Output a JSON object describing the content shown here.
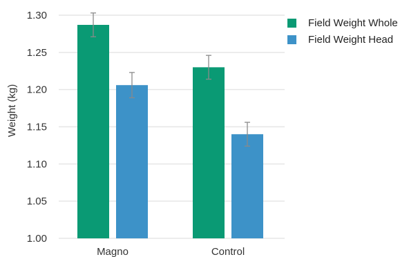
{
  "chart_data": {
    "type": "bar",
    "title": "",
    "xlabel": "",
    "ylabel": "Weight (kg)",
    "ylim": [
      1.0,
      1.3
    ],
    "yticks": [
      "1.00",
      "1.05",
      "1.10",
      "1.15",
      "1.20",
      "1.25",
      "1.30"
    ],
    "grid": true,
    "legend_position": "top-right",
    "categories": [
      "Magno",
      "Control"
    ],
    "series": [
      {
        "name": "Field Weight Whole",
        "color": "#0a9a74",
        "values": [
          1.287,
          1.23
        ],
        "errors": [
          0.016,
          0.016
        ]
      },
      {
        "name": "Field Weight Head",
        "color": "#3d92c8",
        "values": [
          1.206,
          1.14
        ],
        "errors": [
          0.017,
          0.016
        ]
      }
    ]
  }
}
